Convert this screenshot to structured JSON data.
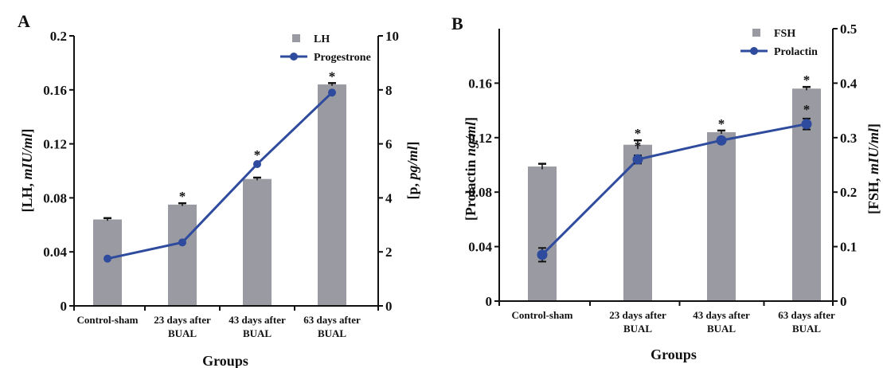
{
  "chart_data": [
    {
      "panel": "A",
      "type": "bar",
      "categories": [
        [
          "Control-sham"
        ],
        [
          "23 days after",
          "BUAL"
        ],
        [
          "43 days after",
          "BUAL"
        ],
        [
          "63 days after",
          "BUAL"
        ]
      ],
      "xlabel": "Groups",
      "ylabel_left": "[LH, mIU/ml]",
      "ylabel_right": "[p, pg/ml]",
      "ylim_left": [
        0,
        0.2
      ],
      "yticks_left": [
        "0",
        "0.04",
        "0.08",
        "0.12",
        "0.16",
        "0.2"
      ],
      "ylim_right": [
        0,
        10
      ],
      "yticks_right": [
        "0",
        "2",
        "4",
        "6",
        "8",
        "10"
      ],
      "series": [
        {
          "name": "LH",
          "kind": "bar",
          "axis": "left",
          "color": "#9a9aa2",
          "values": [
            0.064,
            0.075,
            0.094,
            0.164
          ],
          "errors": [
            0.001,
            0.001,
            0.001,
            0.001
          ]
        },
        {
          "name": "Progestrone",
          "kind": "line",
          "axis": "right",
          "color": "#2e4b9e",
          "values": [
            1.75,
            2.35,
            5.25,
            7.9
          ]
        }
      ],
      "bar_stars": [
        false,
        true,
        false,
        true
      ],
      "line_stars": [
        false,
        false,
        true,
        false
      ],
      "grid": false,
      "legend": "top-right"
    },
    {
      "panel": "B",
      "type": "bar",
      "categories": [
        [
          "Control-sham"
        ],
        [
          "23 days after",
          "BUAL"
        ],
        [
          "43 days after",
          "BUAL"
        ],
        [
          "63 days after",
          "BUAL"
        ]
      ],
      "xlabel": "Groups",
      "ylabel_left": "[Prolactin ng/ml]",
      "ylabel_right": "[FSH, mIU/ml]",
      "ylim_left": [
        0,
        0.2
      ],
      "yticks_left": [
        "0",
        "0.04",
        "0.08",
        "0.12",
        "0.16"
      ],
      "ylim_right": [
        0,
        0.5
      ],
      "yticks_right": [
        "0",
        "0.1",
        "0.2",
        "0.3",
        "0.4",
        "0.5"
      ],
      "series": [
        {
          "name": "FSH",
          "kind": "bar",
          "axis": "right",
          "color": "#9a9aa2",
          "values": [
            0.247,
            0.287,
            0.31,
            0.39
          ],
          "errors": [
            0.005,
            0.008,
            0.003,
            0.003
          ]
        },
        {
          "name": "Prolactin",
          "kind": "line",
          "axis": "left",
          "color": "#2e4b9e",
          "values": [
            0.034,
            0.104,
            0.118,
            0.13
          ],
          "errors": [
            0.005,
            0.003,
            0.002,
            0.004
          ]
        }
      ],
      "bar_stars": [
        false,
        true,
        true,
        true
      ],
      "line_stars": [
        false,
        true,
        false,
        true
      ],
      "grid": false,
      "legend": "top-right"
    }
  ]
}
